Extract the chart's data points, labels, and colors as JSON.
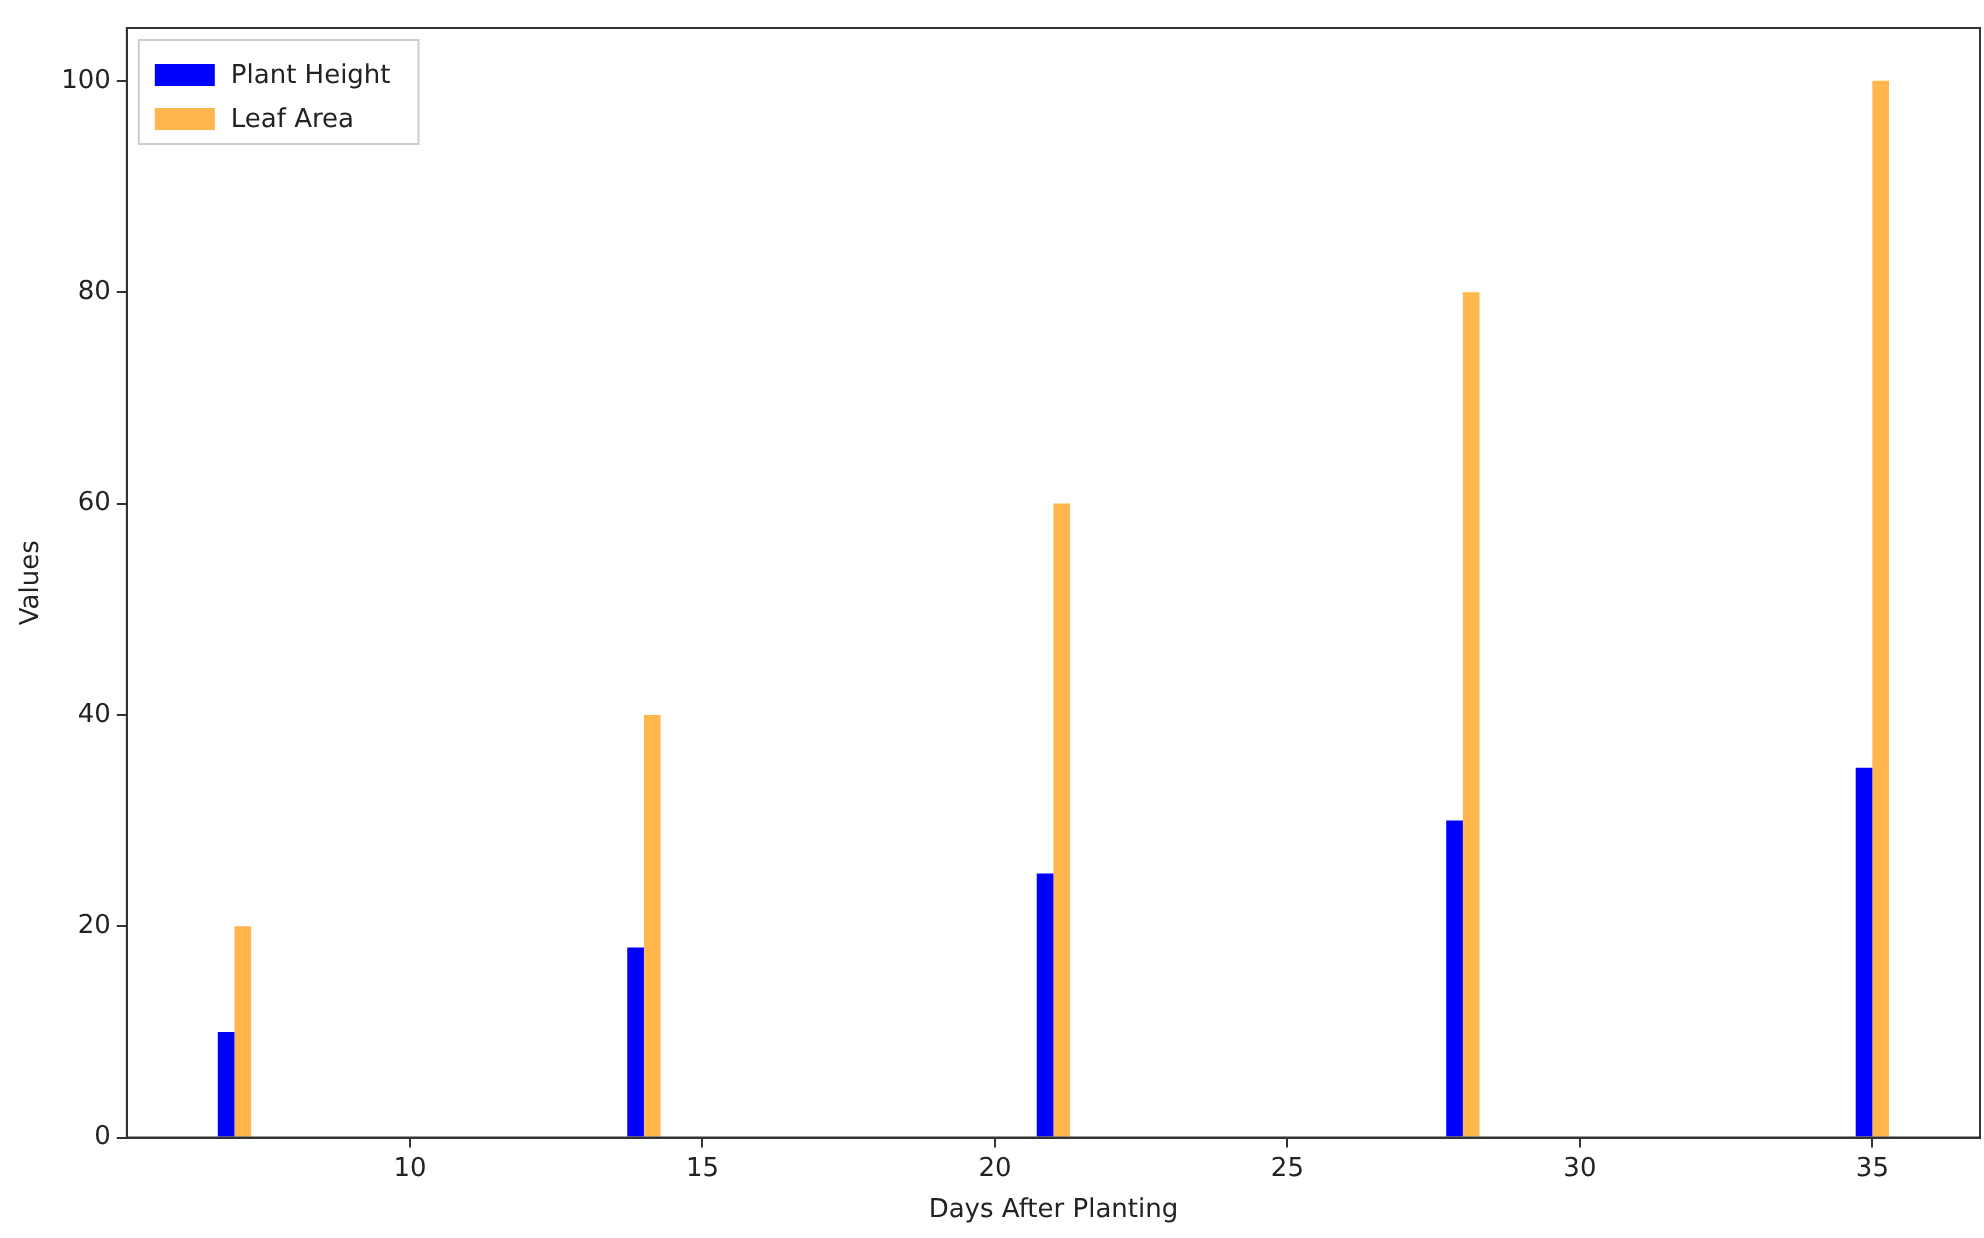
{
  "chart_data": {
    "type": "bar",
    "xlabel": "Days After Planting",
    "ylabel": "Values",
    "x": [
      7,
      14,
      21,
      28,
      35
    ],
    "series": [
      {
        "name": "Plant Height",
        "color": "#0000ff",
        "values": [
          10,
          18,
          25,
          30,
          35
        ]
      },
      {
        "name": "Leaf Area",
        "color": "#ffb74d",
        "values": [
          20,
          40,
          60,
          80,
          100
        ]
      }
    ],
    "xlim": [
      5.16,
      36.84
    ],
    "xticks": [
      10,
      15,
      20,
      25,
      30,
      35
    ],
    "ylim": [
      0,
      105
    ],
    "yticks": [
      0,
      20,
      40,
      60,
      80,
      100
    ],
    "grid": false,
    "legend": "top left"
  }
}
